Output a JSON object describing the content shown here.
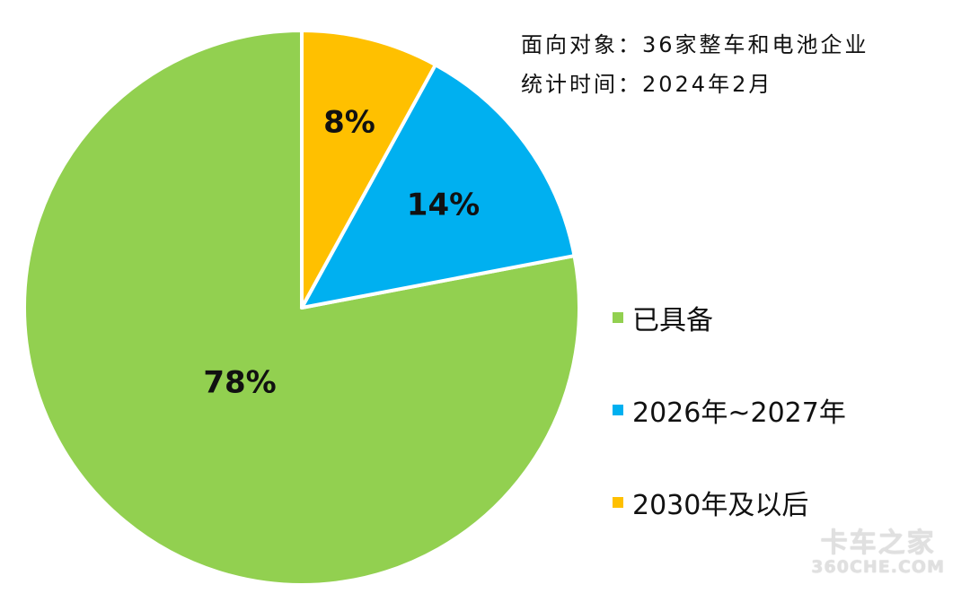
{
  "notes": {
    "target": "面向对象：36家整车和电池企业",
    "time": "统计时间：2024年2月"
  },
  "chart_data": {
    "type": "pie",
    "start_angle_deg": 0,
    "direction": "counterclockwise",
    "slices": [
      {
        "label": "已具备",
        "value": 78,
        "display": "78%",
        "color": "#92D050"
      },
      {
        "label": "2026年~2027年",
        "value": 14,
        "display": "14%",
        "color": "#00B0F0"
      },
      {
        "label": "2030年及以后",
        "value": 8,
        "display": "8%",
        "color": "#FFC000"
      }
    ],
    "legend_position": "right"
  },
  "watermark": {
    "main": "卡车之家",
    "sub": "360CHE.COM"
  }
}
